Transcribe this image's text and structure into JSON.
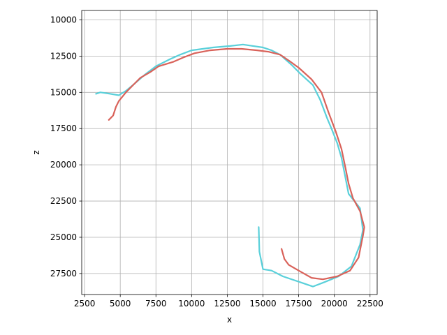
{
  "chart_data": {
    "type": "line",
    "title": "",
    "xlabel": "x",
    "ylabel": "z",
    "xlim": [
      2300,
      23000
    ],
    "ylim": [
      28950,
      9350
    ],
    "y_inverted": true,
    "grid": true,
    "x_ticks": [
      2500,
      5000,
      7500,
      10000,
      12500,
      15000,
      17500,
      20000,
      22500
    ],
    "y_ticks": [
      10000,
      12500,
      15000,
      17500,
      20000,
      22500,
      25000,
      27500
    ],
    "series": [
      {
        "color": "#5ad0da",
        "points": [
          [
            14700,
            24300
          ],
          [
            14750,
            26000
          ],
          [
            15000,
            27200
          ],
          [
            15600,
            27300
          ],
          [
            16400,
            27700
          ],
          [
            17600,
            28100
          ],
          [
            18500,
            28400
          ],
          [
            19300,
            28100
          ],
          [
            20300,
            27700
          ],
          [
            21200,
            27000
          ],
          [
            21800,
            25500
          ],
          [
            22000,
            24500
          ],
          [
            21800,
            23000
          ],
          [
            21000,
            22000
          ],
          [
            20700,
            20500
          ],
          [
            20500,
            19500
          ],
          [
            20200,
            18500
          ],
          [
            19800,
            17500
          ],
          [
            19500,
            16800
          ],
          [
            19000,
            15500
          ],
          [
            18500,
            14500
          ],
          [
            17600,
            13700
          ],
          [
            17000,
            13100
          ],
          [
            16200,
            12400
          ],
          [
            15600,
            12100
          ],
          [
            15000,
            11900
          ],
          [
            13600,
            11700
          ],
          [
            12700,
            11800
          ],
          [
            11500,
            11900
          ],
          [
            10000,
            12100
          ],
          [
            9200,
            12400
          ],
          [
            8500,
            12700
          ],
          [
            7500,
            13200
          ],
          [
            6700,
            13800
          ],
          [
            6000,
            14400
          ],
          [
            5400,
            14900
          ],
          [
            4900,
            15200
          ],
          [
            4300,
            15100
          ],
          [
            3600,
            15000
          ],
          [
            3300,
            15100
          ]
        ]
      },
      {
        "color": "#d9625a",
        "points": [
          [
            16300,
            25800
          ],
          [
            16500,
            26500
          ],
          [
            16800,
            26900
          ],
          [
            17500,
            27300
          ],
          [
            18400,
            27800
          ],
          [
            19200,
            27900
          ],
          [
            20200,
            27700
          ],
          [
            21100,
            27300
          ],
          [
            21700,
            26400
          ],
          [
            22000,
            24900
          ],
          [
            22100,
            24300
          ],
          [
            21800,
            23200
          ],
          [
            21300,
            22300
          ],
          [
            21000,
            21300
          ],
          [
            20800,
            20300
          ],
          [
            20500,
            18900
          ],
          [
            20100,
            17700
          ],
          [
            19600,
            16400
          ],
          [
            19100,
            15000
          ],
          [
            18400,
            14100
          ],
          [
            17500,
            13300
          ],
          [
            16800,
            12800
          ],
          [
            16200,
            12400
          ],
          [
            15400,
            12200
          ],
          [
            14600,
            12100
          ],
          [
            13500,
            12000
          ],
          [
            12500,
            12000
          ],
          [
            11300,
            12100
          ],
          [
            10200,
            12300
          ],
          [
            9400,
            12600
          ],
          [
            8700,
            12900
          ],
          [
            7700,
            13200
          ],
          [
            7100,
            13600
          ],
          [
            6400,
            14000
          ],
          [
            5900,
            14500
          ],
          [
            5400,
            15000
          ],
          [
            4900,
            15600
          ],
          [
            4700,
            16000
          ],
          [
            4500,
            16600
          ],
          [
            4200,
            16900
          ]
        ]
      }
    ]
  }
}
